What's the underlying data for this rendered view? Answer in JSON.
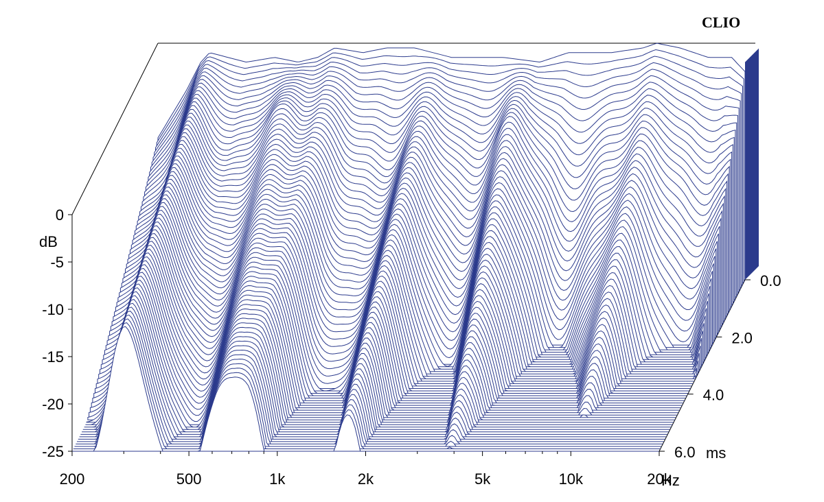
{
  "chart_data": {
    "type": "waterfall",
    "brand": "CLIO",
    "y_axis": {
      "unit_label": "dB",
      "ticks": [
        "0",
        "-5",
        "-10",
        "-15",
        "-20",
        "-25"
      ],
      "tick_values": [
        0,
        -5,
        -10,
        -15,
        -20,
        -25
      ],
      "range": [
        -25,
        0
      ]
    },
    "x_axis": {
      "unit_label": "Hz",
      "scale": "log",
      "ticks": [
        "200",
        "500",
        "1k",
        "2k",
        "5k",
        "10k",
        "20k"
      ],
      "tick_values": [
        200,
        500,
        1000,
        2000,
        5000,
        10000,
        20000
      ],
      "range": [
        200,
        20000
      ]
    },
    "z_axis": {
      "unit_label": "ms",
      "ticks": [
        "0.0",
        "2.0",
        "4.0",
        "6.0"
      ],
      "tick_values": [
        0,
        2,
        4,
        6
      ],
      "range": [
        0,
        6
      ]
    },
    "slice_count": 72,
    "initial_response_db": [
      [
        200,
        -10
      ],
      [
        250,
        -5
      ],
      [
        280,
        -2
      ],
      [
        300,
        -1
      ],
      [
        400,
        -2
      ],
      [
        500,
        -1.5
      ],
      [
        600,
        -2
      ],
      [
        700,
        -1.5
      ],
      [
        800,
        -0.5
      ],
      [
        1000,
        -1
      ],
      [
        1200,
        -0.5
      ],
      [
        1500,
        -0.5
      ],
      [
        2000,
        -1.5
      ],
      [
        3000,
        -1.5
      ],
      [
        4000,
        -2
      ],
      [
        5000,
        -1
      ],
      [
        7000,
        -1
      ],
      [
        9000,
        -0.5
      ],
      [
        10000,
        0
      ],
      [
        12000,
        -0.5
      ],
      [
        15000,
        -1.5
      ],
      [
        18000,
        -1.5
      ],
      [
        20000,
        -3
      ]
    ],
    "colors": {
      "lines": "#2b3a8c",
      "frame": "#000000",
      "background": "#ffffff"
    }
  }
}
